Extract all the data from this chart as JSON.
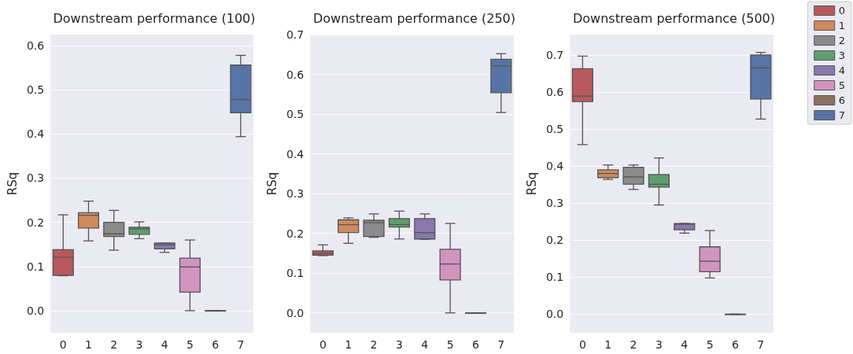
{
  "chart_data": [
    {
      "type": "box",
      "title": "Downstream performance (100)",
      "ylabel": "RSq",
      "categories": [
        "0",
        "1",
        "2",
        "3",
        "4",
        "5",
        "6",
        "7"
      ],
      "ylim": [
        -0.05,
        0.625
      ],
      "yticks": [
        {
          "value": 0,
          "label": "0.0"
        },
        {
          "value": 0.1,
          "label": "0.1"
        },
        {
          "value": 0.2,
          "label": "0.2"
        },
        {
          "value": 0.3,
          "label": "0.3"
        },
        {
          "value": 0.4,
          "label": "0.4"
        },
        {
          "value": 0.5,
          "label": "0.5"
        },
        {
          "value": 0.6,
          "label": "0.6"
        }
      ],
      "grid": "y",
      "legend": false,
      "series": [
        {
          "color": "#b85a5d",
          "boxes": [
            {
              "low": 0.079,
              "q1": 0.08,
              "median": 0.121,
              "q3": 0.138,
              "high": 0.217
            },
            null,
            null,
            null,
            null,
            null,
            null,
            null
          ]
        },
        {
          "color": "#d08a5e",
          "boxes": [
            null,
            {
              "low": 0.158,
              "q1": 0.187,
              "median": 0.216,
              "q3": 0.222,
              "high": 0.248
            },
            null,
            null,
            null,
            null,
            null,
            null
          ]
        },
        {
          "color": "#8b8b8b",
          "boxes": [
            null,
            null,
            {
              "low": 0.137,
              "q1": 0.168,
              "median": 0.174,
              "q3": 0.2,
              "high": 0.227
            },
            null,
            null,
            null,
            null,
            null
          ]
        },
        {
          "color": "#5f9e6e",
          "boxes": [
            null,
            null,
            null,
            {
              "low": 0.163,
              "q1": 0.173,
              "median": 0.185,
              "q3": 0.189,
              "high": 0.201
            },
            null,
            null,
            null,
            null
          ]
        },
        {
          "color": "#8878ae",
          "boxes": [
            null,
            null,
            null,
            null,
            {
              "low": 0.132,
              "q1": 0.14,
              "median": 0.149,
              "q3": 0.153,
              "high": 0.153
            },
            null,
            null,
            null
          ]
        },
        {
          "color": "#d194bf",
          "boxes": [
            null,
            null,
            null,
            null,
            null,
            {
              "low": 0,
              "q1": 0.042,
              "median": 0.099,
              "q3": 0.119,
              "high": 0.16
            },
            null,
            null
          ]
        },
        {
          "color": "#8c7160",
          "boxes": [
            null,
            null,
            null,
            null,
            null,
            null,
            {
              "low": 0,
              "q1": 0,
              "median": 0,
              "q3": 0,
              "high": 0
            },
            null
          ]
        },
        {
          "color": "#5874a6",
          "boxes": [
            null,
            null,
            null,
            null,
            null,
            null,
            null,
            {
              "low": 0.394,
              "q1": 0.448,
              "median": 0.478,
              "q3": 0.556,
              "high": 0.578
            }
          ]
        }
      ]
    },
    {
      "type": "box",
      "title": "Downstream performance (250)",
      "ylabel": "RSq",
      "categories": [
        "0",
        "1",
        "2",
        "3",
        "4",
        "5",
        "6",
        "7"
      ],
      "ylim": [
        -0.05,
        0.7
      ],
      "yticks": [
        {
          "value": 0,
          "label": "0.0"
        },
        {
          "value": 0.1,
          "label": "0.1"
        },
        {
          "value": 0.2,
          "label": "0.2"
        },
        {
          "value": 0.3,
          "label": "0.3"
        },
        {
          "value": 0.4,
          "label": "0.4"
        },
        {
          "value": 0.5,
          "label": "0.5"
        },
        {
          "value": 0.6,
          "label": "0.6"
        },
        {
          "value": 0.7,
          "label": "0.7"
        }
      ],
      "grid": "y",
      "legend": false,
      "series": [
        {
          "color": "#b85a5d",
          "boxes": [
            {
              "low": 0.144,
              "q1": 0.145,
              "median": 0.15,
              "q3": 0.156,
              "high": 0.171
            },
            null,
            null,
            null,
            null,
            null,
            null,
            null
          ]
        },
        {
          "color": "#d08a5e",
          "boxes": [
            null,
            {
              "low": 0.175,
              "q1": 0.202,
              "median": 0.222,
              "q3": 0.234,
              "high": 0.239
            },
            null,
            null,
            null,
            null,
            null,
            null
          ]
        },
        {
          "color": "#8b8b8b",
          "boxes": [
            null,
            null,
            {
              "low": 0.19,
              "q1": 0.192,
              "median": 0.227,
              "q3": 0.233,
              "high": 0.249
            },
            null,
            null,
            null,
            null,
            null
          ]
        },
        {
          "color": "#5f9e6e",
          "boxes": [
            null,
            null,
            null,
            {
              "low": 0.186,
              "q1": 0.216,
              "median": 0.222,
              "q3": 0.237,
              "high": 0.256
            },
            null,
            null,
            null,
            null
          ]
        },
        {
          "color": "#8878ae",
          "boxes": [
            null,
            null,
            null,
            null,
            {
              "low": 0.185,
              "q1": 0.186,
              "median": 0.202,
              "q3": 0.237,
              "high": 0.249
            },
            null,
            null,
            null
          ]
        },
        {
          "color": "#d194bf",
          "boxes": [
            null,
            null,
            null,
            null,
            null,
            {
              "low": 0,
              "q1": 0.083,
              "median": 0.123,
              "q3": 0.16,
              "high": 0.225
            },
            null,
            null
          ]
        },
        {
          "color": "#8c7160",
          "boxes": [
            null,
            null,
            null,
            null,
            null,
            null,
            {
              "low": 0,
              "q1": 0,
              "median": 0,
              "q3": 0,
              "high": 0
            },
            null
          ]
        },
        {
          "color": "#5874a6",
          "boxes": [
            null,
            null,
            null,
            null,
            null,
            null,
            null,
            {
              "low": 0.504,
              "q1": 0.554,
              "median": 0.621,
              "q3": 0.638,
              "high": 0.652
            }
          ]
        }
      ]
    },
    {
      "type": "box",
      "title": "Downstream performance (500)",
      "ylabel": "RSq",
      "categories": [
        "0",
        "1",
        "2",
        "3",
        "4",
        "5",
        "6",
        "7"
      ],
      "ylim": [
        -0.05,
        0.755
      ],
      "yticks": [
        {
          "value": 0,
          "label": "0.0"
        },
        {
          "value": 0.1,
          "label": "0.1"
        },
        {
          "value": 0.2,
          "label": "0.2"
        },
        {
          "value": 0.3,
          "label": "0.3"
        },
        {
          "value": 0.4,
          "label": "0.4"
        },
        {
          "value": 0.5,
          "label": "0.5"
        },
        {
          "value": 0.6,
          "label": "0.6"
        },
        {
          "value": 0.7,
          "label": "0.7"
        }
      ],
      "grid": "y",
      "legend": "top right",
      "series": [
        {
          "name": "0",
          "color": "#b85a5d",
          "boxes": [
            {
              "low": 0.458,
              "q1": 0.574,
              "median": 0.589,
              "q3": 0.663,
              "high": 0.697
            },
            null,
            null,
            null,
            null,
            null,
            null,
            null
          ]
        },
        {
          "name": "1",
          "color": "#d08a5e",
          "boxes": [
            null,
            {
              "low": 0.364,
              "q1": 0.369,
              "median": 0.38,
              "q3": 0.39,
              "high": 0.403
            },
            null,
            null,
            null,
            null,
            null,
            null
          ]
        },
        {
          "name": "2",
          "color": "#8b8b8b",
          "boxes": [
            null,
            null,
            {
              "low": 0.337,
              "q1": 0.351,
              "median": 0.371,
              "q3": 0.397,
              "high": 0.403
            },
            null,
            null,
            null,
            null,
            null
          ]
        },
        {
          "name": "3",
          "color": "#5f9e6e",
          "boxes": [
            null,
            null,
            null,
            {
              "low": 0.295,
              "q1": 0.343,
              "median": 0.351,
              "q3": 0.377,
              "high": 0.422
            },
            null,
            null,
            null,
            null
          ]
        },
        {
          "name": "4",
          "color": "#8878ae",
          "boxes": [
            null,
            null,
            null,
            null,
            {
              "low": 0.219,
              "q1": 0.228,
              "median": 0.243,
              "q3": 0.245,
              "high": 0.245
            },
            null,
            null,
            null
          ]
        },
        {
          "name": "5",
          "color": "#d194bf",
          "boxes": [
            null,
            null,
            null,
            null,
            null,
            {
              "low": 0.098,
              "q1": 0.115,
              "median": 0.143,
              "q3": 0.182,
              "high": 0.226
            },
            null,
            null
          ]
        },
        {
          "name": "6",
          "color": "#8c7160",
          "boxes": [
            null,
            null,
            null,
            null,
            null,
            null,
            {
              "low": 0,
              "q1": 0,
              "median": 0,
              "q3": 0,
              "high": 0
            },
            null
          ]
        },
        {
          "name": "7",
          "color": "#5874a6",
          "boxes": [
            null,
            null,
            null,
            null,
            null,
            null,
            null,
            {
              "low": 0.527,
              "q1": 0.581,
              "median": 0.665,
              "q3": 0.7,
              "high": 0.707
            }
          ]
        }
      ]
    }
  ]
}
